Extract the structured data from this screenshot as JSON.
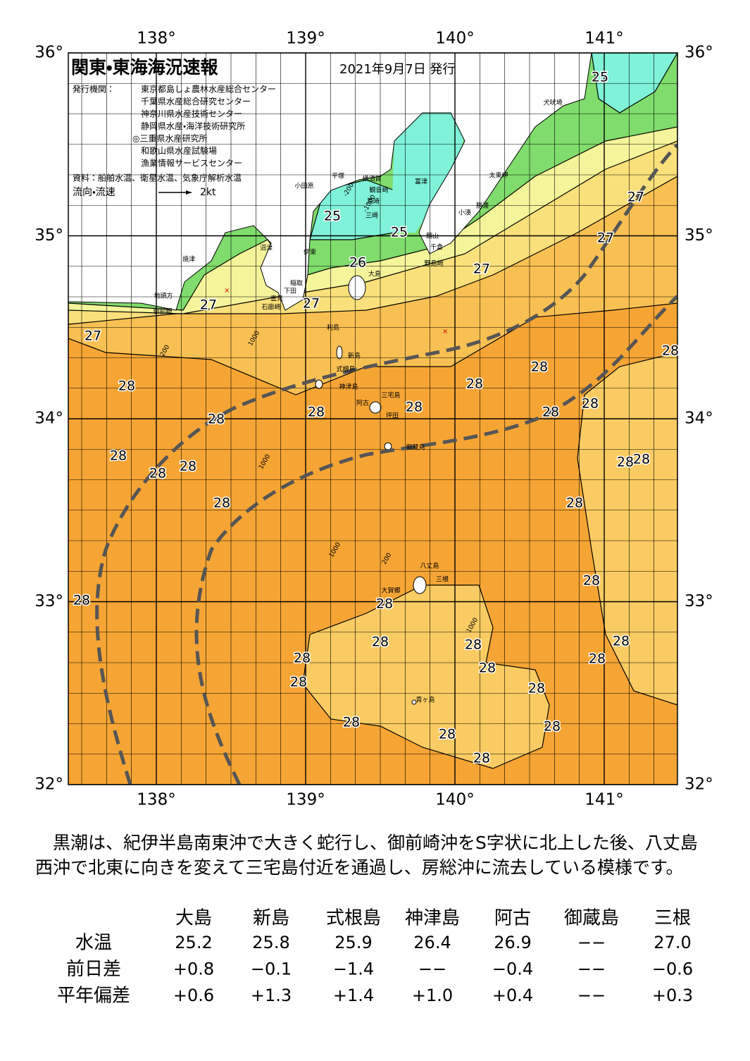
{
  "header": {
    "title": "関東・東海海況速報",
    "date": "2021年9月7日 発行",
    "issuer_label": "発行機関：",
    "issuers": [
      "東京都島しょ農林水産総合センター",
      "千葉県水産総合研究センター",
      "神奈川県水産技術センター",
      "静岡県水産・海洋技術研究所",
      "◎三重県水産研究所",
      "和歌山県水産試験場",
      "漁業情報サービスセンター"
    ],
    "source": "資料：船舶水温、衛星水温、気象庁解析水温",
    "legend_label": "流向・流速",
    "legend_scale": "2kt"
  },
  "map": {
    "lon_labels": [
      "138°",
      "139°",
      "140°",
      "141°"
    ],
    "lat_labels": [
      "36°",
      "35°",
      "34°",
      "33°",
      "32°"
    ],
    "places": [
      "犬吠埼",
      "太東岬",
      "小田原",
      "平塚",
      "横須賀",
      "富津",
      "観音崎",
      "荒崎",
      "三崎",
      "勝浦",
      "小湊",
      "館山",
      "千倉",
      "野島崎",
      "沼津",
      "焼津",
      "伊東",
      "大島",
      "稲取",
      "下田",
      "雲見",
      "石廊崎",
      "地頭方",
      "御前崎",
      "利島",
      "新島",
      "式根島",
      "神津島",
      "阿古",
      "三宅島",
      "坪田",
      "御蔵島",
      "八丈島",
      "三根",
      "大賀郷",
      "青ヶ島"
    ],
    "depth_labels": [
      "-200",
      "-1000",
      "1000",
      "200",
      "1000",
      "1000",
      "200",
      "1000"
    ],
    "temperature_labels": [
      25,
      27,
      25,
      25,
      27,
      26,
      27,
      27,
      27,
      27,
      28,
      28,
      28,
      28,
      28,
      28,
      28,
      28,
      28,
      28,
      28,
      28,
      28,
      28,
      28,
      28,
      28,
      28,
      28,
      28,
      28,
      28,
      28,
      28,
      28,
      28,
      28,
      28,
      28,
      28,
      28
    ]
  },
  "summary": "黒潮は、紀伊半島南東沖で大きく蛇行し、御前崎沖をS字状に北上した後、八丈島西沖で北東に向きを変えて三宅島付近を通過し、房総沖に流去している模様です。",
  "table": {
    "columns": [
      "大島",
      "新島",
      "式根島",
      "神津島",
      "阿古",
      "御蔵島",
      "三根"
    ],
    "rows": [
      {
        "label": "水温",
        "values": [
          "25.2",
          "25.8",
          "25.9",
          "26.4",
          "26.9",
          "−−",
          "27.0"
        ]
      },
      {
        "label": "前日差",
        "values": [
          "+0.8",
          "−0.1",
          "−1.4",
          "−−",
          "−0.4",
          "−−",
          "−0.6"
        ]
      },
      {
        "label": "平年偏差",
        "values": [
          "+0.6",
          "+1.3",
          "+1.4",
          "+1.0",
          "+0.4",
          "−−",
          "+0.3"
        ]
      }
    ]
  }
}
